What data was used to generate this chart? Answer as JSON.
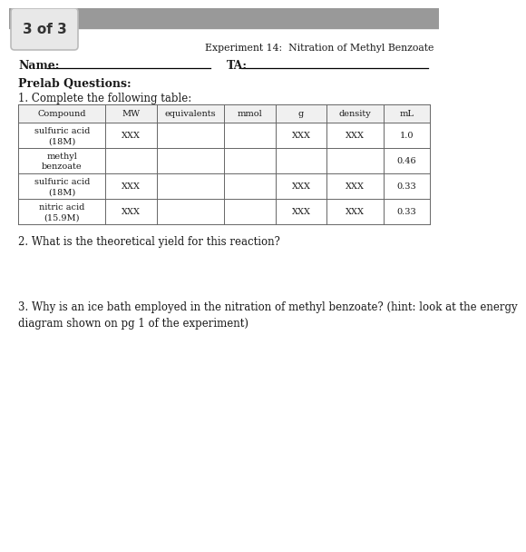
{
  "title": "Experiment 14:  Nitration of Methyl Benzoate",
  "badge_text": "3 of 3",
  "name_label": "Name:",
  "ta_label": "TA:",
  "prelab_heading": "Prelab Questions:",
  "question1_label": "1. Complete the following table:",
  "table_headers": [
    "Compound",
    "MW",
    "equivalents",
    "mmol",
    "g",
    "density",
    "mL"
  ],
  "table_rows": [
    [
      "sulfuric acid\n(18M)",
      "XXX",
      "",
      "",
      "XXX",
      "XXX",
      "1.0"
    ],
    [
      "methyl\nbenzoate",
      "",
      "",
      "",
      "",
      "",
      "0.46"
    ],
    [
      "sulfuric acid\n(18M)",
      "XXX",
      "",
      "",
      "XXX",
      "XXX",
      "0.33"
    ],
    [
      "nitric acid\n(15.9M)",
      "XXX",
      "",
      "",
      "XXX",
      "XXX",
      "0.33"
    ]
  ],
  "question2": "2. What is the theoretical yield for this reaction?",
  "question3": "3. Why is an ice bath employed in the nitration of methyl benzoate? (hint: look at the energy\ndiagram shown on pg 1 of the experiment)",
  "bg_color": "#ffffff",
  "banner_color": "#999999",
  "badge_bg": "#e8e8e8",
  "badge_border": "#bbbbbb",
  "text_color": "#1a1a1a",
  "table_border_color": "#666666",
  "table_header_bg": "#f0f0f0"
}
